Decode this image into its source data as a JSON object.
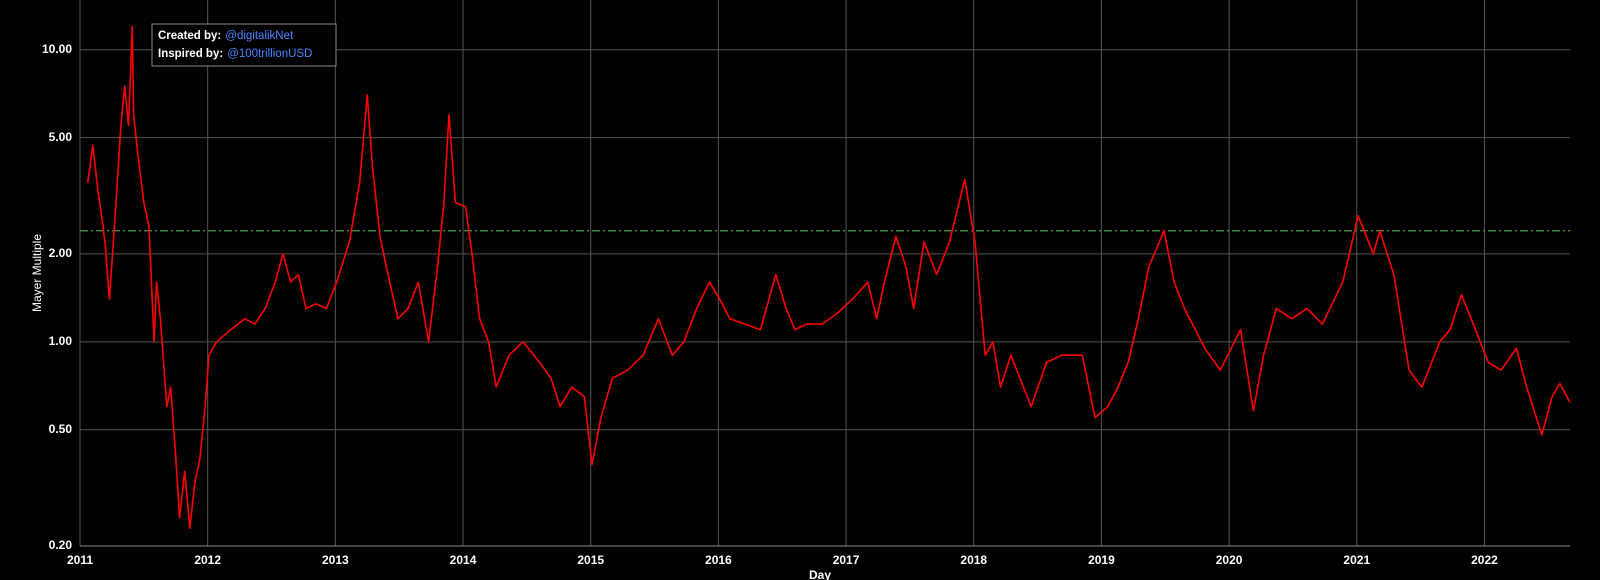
{
  "chart_data": {
    "type": "line",
    "x_label": "Day",
    "y_label": "Mayer Multiple",
    "annotation": {
      "created_by_label": "Created by:",
      "created_by": "@digitalikNet",
      "inspired_by_label": "Inspired by:",
      "inspired_by": "@100trillionUSD"
    },
    "color": "#ff0000",
    "threshold": {
      "value": 2.4,
      "color": "#4e9a4e"
    },
    "log_scale": true,
    "grid": true,
    "xlim": [
      2011,
      2022.67
    ],
    "xticks": [
      2011,
      2012,
      2013,
      2014,
      2015,
      2016,
      2017,
      2018,
      2019,
      2020,
      2021,
      2022
    ],
    "ylim": [
      0.2,
      14.8
    ],
    "yticks": [
      {
        "value": 0.2,
        "label": "0.20"
      },
      {
        "value": 0.5,
        "label": "0.50"
      },
      {
        "value": 1,
        "label": "1.00"
      },
      {
        "value": 2,
        "label": "2.00"
      },
      {
        "value": 5,
        "label": "5.00"
      },
      {
        "value": 10,
        "label": "10.00"
      }
    ],
    "x": [
      2011.06,
      2011.1,
      2011.14,
      2011.18,
      2011.2,
      2011.23,
      2011.27,
      2011.32,
      2011.35,
      2011.38,
      2011.41,
      2011.42,
      2011.45,
      2011.5,
      2011.54,
      2011.58,
      2011.6,
      2011.63,
      2011.68,
      2011.71,
      2011.75,
      2011.78,
      2011.82,
      2011.86,
      2011.9,
      2011.94,
      2011.98,
      2012.01,
      2012.07,
      2012.18,
      2012.29,
      2012.37,
      2012.45,
      2012.53,
      2012.59,
      2012.65,
      2012.71,
      2012.77,
      2012.85,
      2012.93,
      2013.01,
      2013.11,
      2013.19,
      2013.25,
      2013.29,
      2013.35,
      2013.4,
      2013.49,
      2013.57,
      2013.65,
      2013.73,
      2013.8,
      2013.85,
      2013.89,
      2013.94,
      2014.02,
      2014.07,
      2014.13,
      2014.2,
      2014.26,
      2014.36,
      2014.47,
      2014.6,
      2014.69,
      2014.76,
      2014.85,
      2014.95,
      2015.01,
      2015.08,
      2015.17,
      2015.29,
      2015.41,
      2015.53,
      2015.64,
      2015.73,
      2015.83,
      2015.93,
      2016.01,
      2016.09,
      2016.21,
      2016.33,
      2016.45,
      2016.53,
      2016.6,
      2016.69,
      2016.81,
      2016.93,
      2017.05,
      2017.17,
      2017.24,
      2017.3,
      2017.39,
      2017.47,
      2017.53,
      2017.61,
      2017.71,
      2017.81,
      2017.93,
      2018.01,
      2018.09,
      2018.15,
      2018.21,
      2018.29,
      2018.45,
      2018.57,
      2018.69,
      2018.85,
      2018.95,
      2019.05,
      2019.13,
      2019.21,
      2019.29,
      2019.37,
      2019.49,
      2019.57,
      2019.65,
      2019.81,
      2019.93,
      2020.09,
      2020.19,
      2020.27,
      2020.37,
      2020.49,
      2020.61,
      2020.73,
      2020.89,
      2021.01,
      2021.13,
      2021.18,
      2021.29,
      2021.41,
      2021.51,
      2021.65,
      2021.73,
      2021.82,
      2021.93,
      2022.03,
      2022.13,
      2022.25,
      2022.33,
      2022.45,
      2022.53,
      2022.59,
      2022.67
    ],
    "values": [
      3.5,
      4.7,
      3.3,
      2.5,
      2.1,
      1.4,
      2.5,
      5.5,
      7.5,
      5.5,
      12,
      6,
      4.5,
      3,
      2.5,
      1.0,
      1.6,
      1.2,
      0.6,
      0.7,
      0.4,
      0.25,
      0.36,
      0.23,
      0.33,
      0.4,
      0.6,
      0.9,
      1.0,
      1.1,
      1.2,
      1.15,
      1.3,
      1.6,
      2.0,
      1.6,
      1.7,
      1.3,
      1.35,
      1.3,
      1.6,
      2.2,
      3.5,
      7,
      4,
      2.3,
      1.8,
      1.2,
      1.3,
      1.6,
      1.0,
      1.8,
      3,
      6,
      3,
      2.9,
      2.0,
      1.2,
      1.0,
      0.7,
      0.9,
      1.0,
      0.85,
      0.75,
      0.6,
      0.7,
      0.65,
      0.38,
      0.55,
      0.75,
      0.8,
      0.9,
      1.2,
      0.9,
      1.0,
      1.3,
      1.6,
      1.4,
      1.2,
      1.15,
      1.1,
      1.7,
      1.3,
      1.1,
      1.15,
      1.15,
      1.25,
      1.4,
      1.6,
      1.2,
      1.6,
      2.3,
      1.8,
      1.3,
      2.2,
      1.7,
      2.2,
      3.6,
      2.2,
      0.9,
      1.0,
      0.7,
      0.9,
      0.6,
      0.85,
      0.9,
      0.9,
      0.55,
      0.6,
      0.7,
      0.85,
      1.2,
      1.8,
      2.4,
      1.6,
      1.3,
      0.95,
      0.8,
      1.1,
      0.58,
      0.9,
      1.3,
      1.2,
      1.3,
      1.15,
      1.6,
      2.7,
      2.0,
      2.4,
      1.7,
      0.8,
      0.7,
      1.0,
      1.1,
      1.45,
      1.1,
      0.85,
      0.8,
      0.95,
      0.7,
      0.48,
      0.65,
      0.72,
      0.62
    ]
  }
}
